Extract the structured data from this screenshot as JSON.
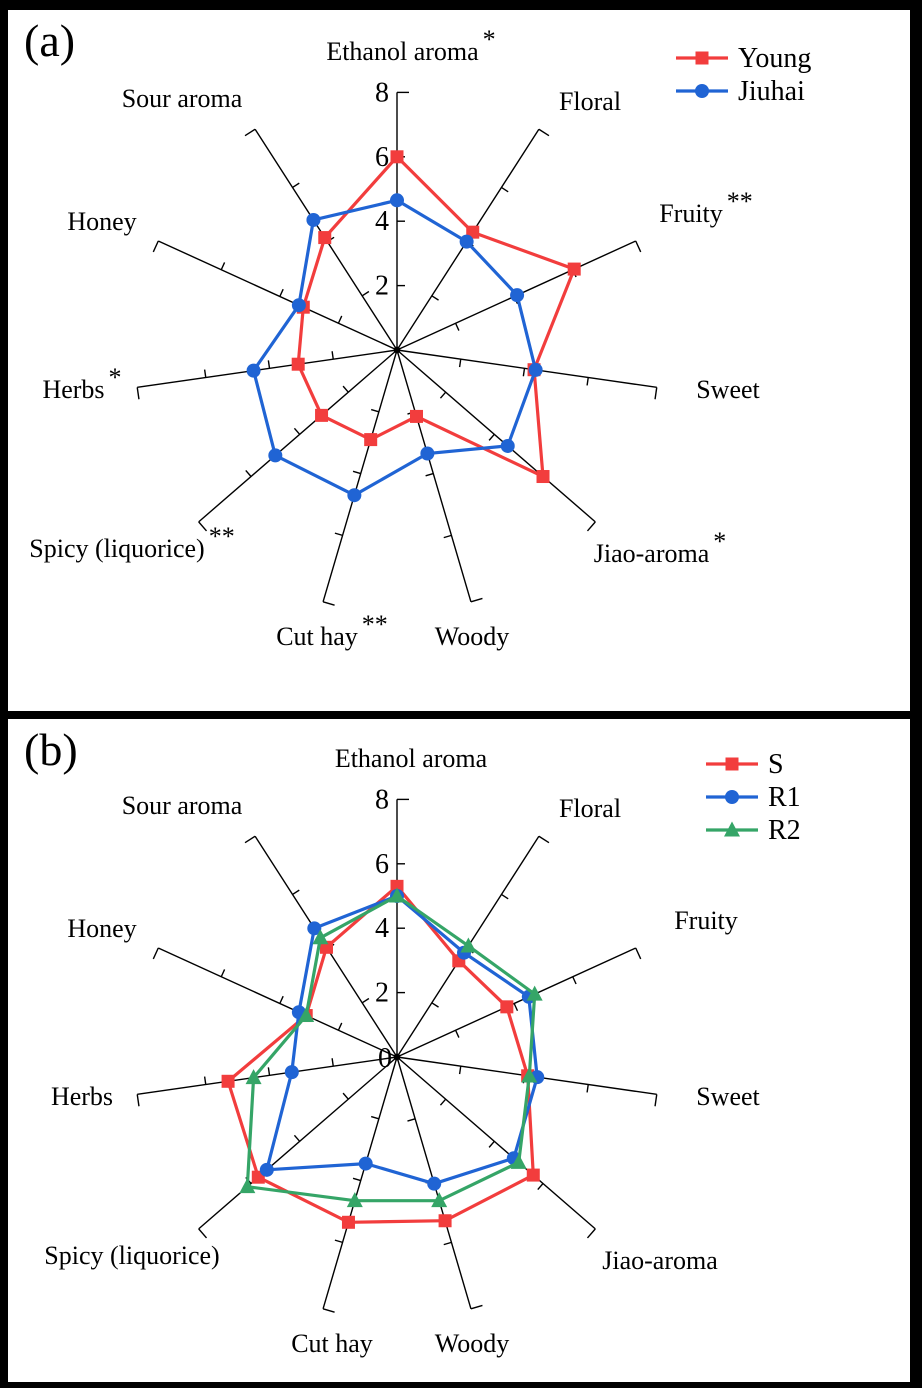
{
  "figure": {
    "background_color": "#000000",
    "panel_background_color": "#ffffff",
    "panels": [
      {
        "label": "(a)"
      },
      {
        "label": "(b)"
      }
    ]
  },
  "chart_data": [
    {
      "type": "radar",
      "panel_label": "(a)",
      "categories": [
        "Ethanol aroma",
        "Floral",
        "Fruity",
        "Sweet",
        "Jiao-aroma",
        "Woody",
        "Cut hay",
        "Spicy (liquorice)",
        "Herbs",
        "Honey",
        "Sour aroma"
      ],
      "category_significance": [
        "*",
        "",
        "**",
        "",
        "*",
        "",
        "**",
        "**",
        "*",
        "",
        ""
      ],
      "radial_axis": {
        "min": 0,
        "max": 8,
        "major_tick_interval": 2,
        "tick_labels": [
          "2",
          "4",
          "6",
          "8"
        ],
        "zero_label_visible": false,
        "zero_label": "0"
      },
      "legend_position": "top-right",
      "series": [
        {
          "name": "Young",
          "marker": "square",
          "color": "#f23d3d",
          "values": [
            6.0,
            4.35,
            6.05,
            4.3,
            6.0,
            2.15,
            2.9,
            3.1,
            3.1,
            3.2,
            4.15
          ]
        },
        {
          "name": "Jiuhai",
          "marker": "circle",
          "color": "#2064d4",
          "values": [
            4.65,
            4.0,
            4.1,
            4.35,
            4.55,
            3.35,
            4.7,
            5.0,
            4.5,
            3.35,
            4.8
          ]
        }
      ]
    },
    {
      "type": "radar",
      "panel_label": "(b)",
      "categories": [
        "Ethanol aroma",
        "Floral",
        "Fruity",
        "Sweet",
        "Jiao-aroma",
        "Woody",
        "Cut hay",
        "Spicy (liquorice)",
        "Herbs",
        "Honey",
        "Sour aroma"
      ],
      "category_significance": [
        "",
        "",
        "",
        "",
        "",
        "",
        "",
        "",
        "",
        "",
        ""
      ],
      "radial_axis": {
        "min": 0,
        "max": 8,
        "major_tick_interval": 2,
        "tick_labels": [
          "2",
          "4",
          "6",
          "8"
        ],
        "zero_label_visible": true,
        "zero_label": "0"
      },
      "legend_position": "top-right",
      "series": [
        {
          "name": "S",
          "marker": "square",
          "color": "#f23d3d",
          "values": [
            5.3,
            3.55,
            3.75,
            4.1,
            5.6,
            5.3,
            5.35,
            5.7,
            5.3,
            3.1,
            4.05
          ]
        },
        {
          "name": "R1",
          "marker": "circle",
          "color": "#2064d4",
          "values": [
            5.0,
            3.85,
            4.5,
            4.4,
            4.8,
            4.1,
            3.45,
            5.35,
            3.3,
            3.35,
            4.75
          ]
        },
        {
          "name": "R2",
          "marker": "triangle",
          "color": "#35a567",
          "values": [
            5.0,
            4.1,
            4.7,
            4.15,
            5.0,
            4.65,
            4.65,
            6.15,
            4.5,
            3.1,
            4.4
          ]
        }
      ]
    }
  ]
}
